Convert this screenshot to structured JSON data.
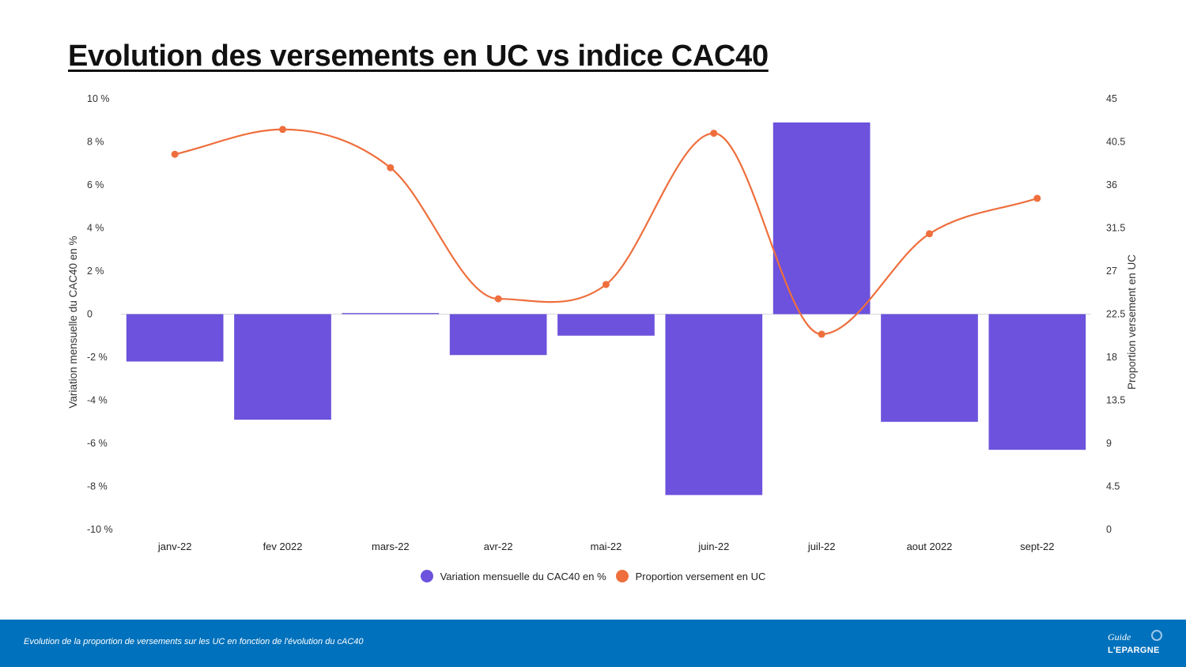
{
  "page": {
    "title": "Evolution des versements en UC vs indice CAC40"
  },
  "chart_data": {
    "type": "bar",
    "categories": [
      "janv-22",
      "fev 2022",
      "mars-22",
      "avr-22",
      "mai-22",
      "juin-22",
      "juil-22",
      "aout 2022",
      "sept-22"
    ],
    "series": [
      {
        "name": "Variation mensuelle du CAC40 en %",
        "type": "bar",
        "axis": "left",
        "color": "#6c52dc",
        "values": [
          -2.2,
          -4.9,
          0.05,
          -1.9,
          -1.0,
          -8.4,
          8.9,
          -5.0,
          -6.3
        ]
      },
      {
        "name": "Proportion versement en UC",
        "type": "line",
        "axis": "right",
        "color": "#ee6f3d",
        "values": [
          39.2,
          41.8,
          37.8,
          24.1,
          25.6,
          41.4,
          20.4,
          30.9,
          34.6
        ]
      }
    ],
    "ylabel": "Variation mensuelle du CAC40 en %",
    "ylabel_right": "Proportion versement en UC",
    "ylim": [
      -10,
      10
    ],
    "ylim_right": [
      0,
      45
    ],
    "yticks": [
      "10 %",
      "8 %",
      "6 %",
      "4 %",
      "2 %",
      "0",
      "-2 %",
      "-4 %",
      "-6 %",
      "-8 %",
      "-10 %"
    ],
    "yticks_right": [
      "45",
      "40.5",
      "36",
      "31.5",
      "27",
      "22.5",
      "18",
      "13.5",
      "9",
      "4.5",
      "0"
    ],
    "grid": false,
    "legend": "bottom-center"
  },
  "legend": {
    "bar_label": "Variation mensuelle du CAC40 en %",
    "line_label": "Proportion versement en UC"
  },
  "footer": {
    "caption": "Evolution de la proportion de versements sur les UC en fonction de l'évolution du cAC40",
    "background": "#0071bc",
    "logo_line1": "Guide",
    "logo_line2": "L'EPARGNE"
  }
}
